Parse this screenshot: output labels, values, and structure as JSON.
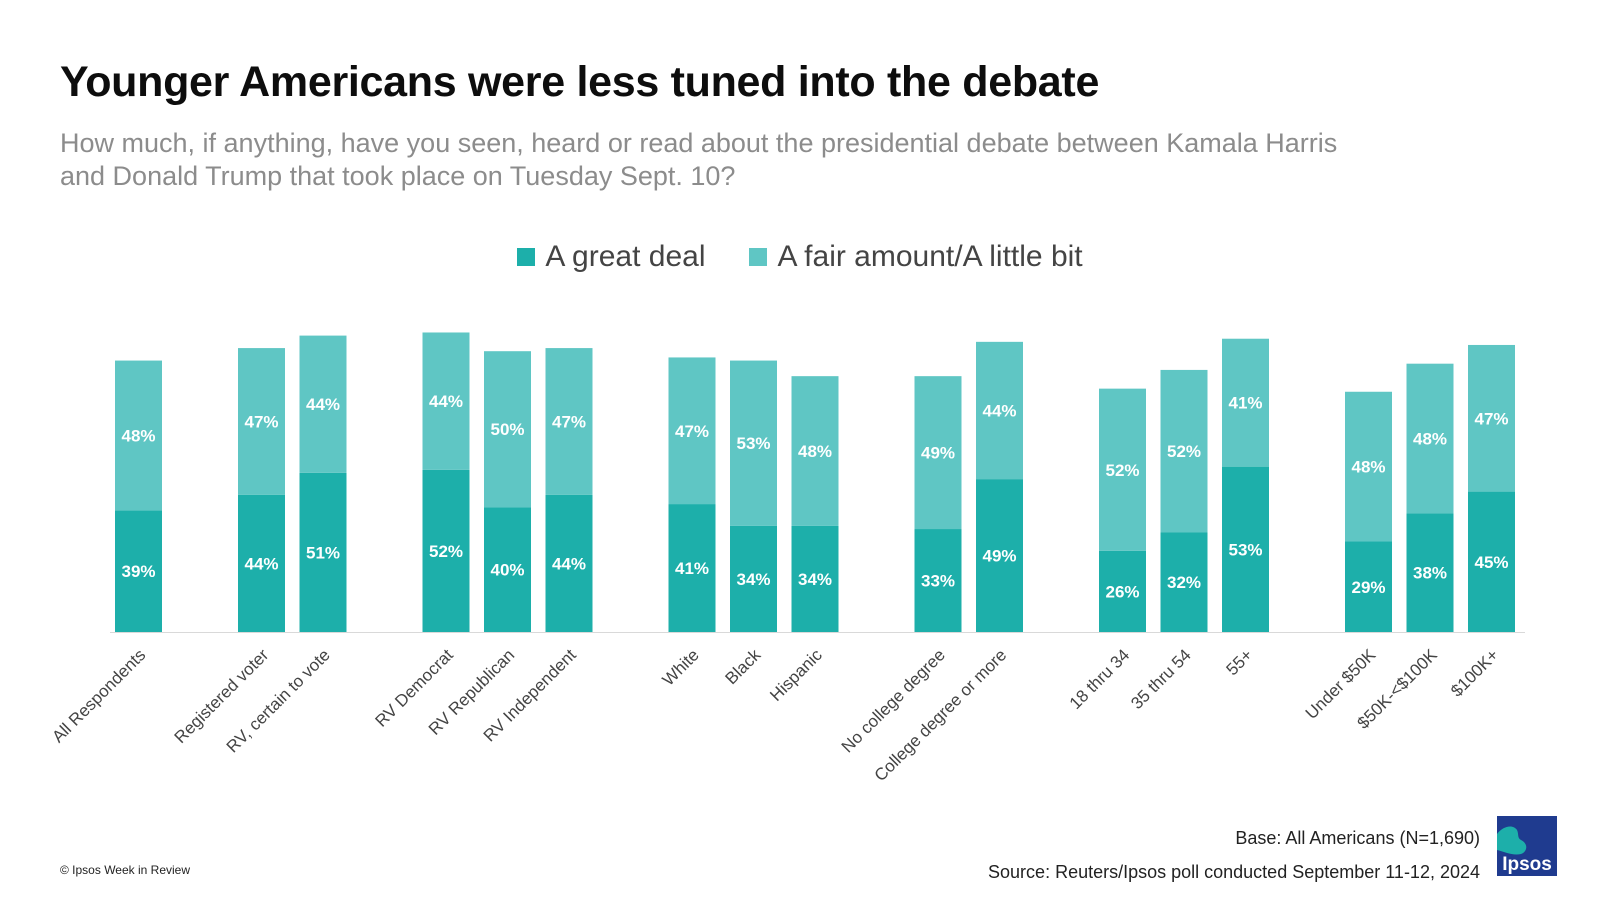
{
  "title": "Younger Americans were less tuned into the debate",
  "subtitle": "How much, if anything, have you seen, heard or read about the presidential debate between Kamala Harris and Donald Trump that took place on Tuesday Sept. 10?",
  "footer": {
    "copyright": "© Ipsos Week in Review",
    "base": "Base: All Americans (N=1,690)",
    "source": "Source: Reuters/Ipsos poll conducted September 11-12, 2024",
    "logo_text": "Ipsos"
  },
  "colors": {
    "great_deal": "#1dafaa",
    "fair_little": "#5fc6c4",
    "logo_blue": "#1f3b8f",
    "logo_teal": "#1dafaa"
  },
  "chart_data": {
    "type": "bar",
    "stacked": true,
    "title": "Younger Americans were less tuned into the debate",
    "ylim": [
      0,
      100
    ],
    "grid": false,
    "legend_position": "top-center",
    "groups": [
      [
        "All Respondents"
      ],
      [
        "Registered voter",
        "RV, certain to vote"
      ],
      [
        "RV Democrat",
        "RV Republican",
        "RV Independent"
      ],
      [
        "White",
        "Black",
        "Hispanic"
      ],
      [
        "No college degree",
        "College degree or more"
      ],
      [
        "18 thru 34",
        "35 thru 54",
        "55+"
      ],
      [
        "Under $50K",
        "$50K-<$100K",
        "$100K+"
      ]
    ],
    "categories": [
      "All Respondents",
      "Registered voter",
      "RV, certain to vote",
      "RV Democrat",
      "RV Republican",
      "RV Independent",
      "White",
      "Black",
      "Hispanic",
      "No college degree",
      "College degree or more",
      "18 thru 34",
      "35 thru 54",
      "55+",
      "Under $50K",
      "$50K-<$100K",
      "$100K+"
    ],
    "series": [
      {
        "name": "A great deal",
        "color": "#1dafaa",
        "values": [
          39,
          44,
          51,
          52,
          40,
          44,
          41,
          34,
          34,
          33,
          49,
          26,
          32,
          53,
          29,
          38,
          45
        ],
        "labels": [
          "39%",
          "44%",
          "51%",
          "52%",
          "40%",
          "44%",
          "41%",
          "34%",
          "34%",
          "33%",
          "49%",
          "26%",
          "32%",
          "53%",
          "29%",
          "38%",
          "45%"
        ]
      },
      {
        "name": "A fair amount/A little bit",
        "color": "#5fc6c4",
        "values": [
          48,
          47,
          44,
          44,
          50,
          47,
          47,
          53,
          48,
          49,
          44,
          52,
          52,
          41,
          48,
          48,
          47
        ],
        "labels": [
          "48%",
          "47%",
          "44%",
          "44%",
          "50%",
          "47%",
          "47%",
          "53%",
          "48%",
          "49%",
          "44%",
          "52%",
          "52%",
          "41%",
          "48%",
          "48%",
          "47%"
        ]
      }
    ]
  }
}
